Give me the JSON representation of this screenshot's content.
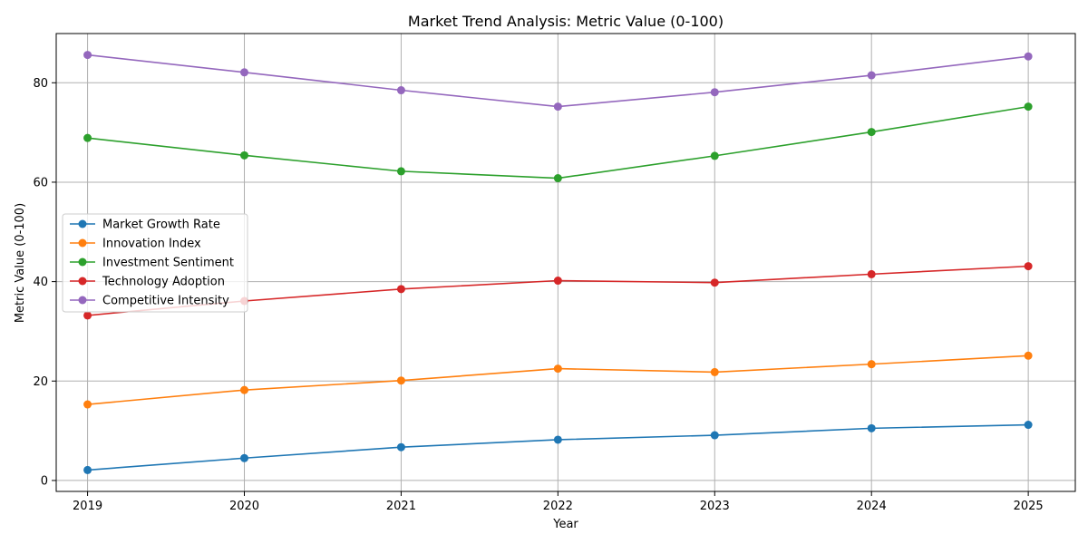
{
  "chart_data": {
    "type": "line",
    "title": "Market Trend Analysis: Metric Value (0-100)",
    "xlabel": "Year",
    "ylabel": "Metric Value (0-100)",
    "x": [
      2019,
      2020,
      2021,
      2022,
      2023,
      2024,
      2025
    ],
    "xlim": [
      2018.8,
      2025.3
    ],
    "ylim": [
      -2.2,
      89.9
    ],
    "yticks": [
      0,
      20,
      40,
      60,
      80
    ],
    "grid": true,
    "legend_position": "center-left",
    "series": [
      {
        "name": "Market Growth Rate",
        "color": "#1f77b4",
        "values": [
          2.1,
          4.5,
          6.7,
          8.2,
          9.1,
          10.5,
          11.2
        ]
      },
      {
        "name": "Innovation Index",
        "color": "#ff7f0e",
        "values": [
          15.3,
          18.2,
          20.1,
          22.5,
          21.8,
          23.4,
          25.1
        ]
      },
      {
        "name": "Investment Sentiment",
        "color": "#2ca02c",
        "values": [
          68.9,
          65.4,
          62.2,
          60.8,
          65.3,
          70.1,
          75.2
        ]
      },
      {
        "name": "Technology Adoption",
        "color": "#d62728",
        "values": [
          33.2,
          36.1,
          38.5,
          40.2,
          39.8,
          41.5,
          43.1
        ]
      },
      {
        "name": "Competitive Intensity",
        "color": "#9467bd",
        "values": [
          85.6,
          82.1,
          78.5,
          75.2,
          78.1,
          81.5,
          85.3
        ]
      }
    ]
  }
}
